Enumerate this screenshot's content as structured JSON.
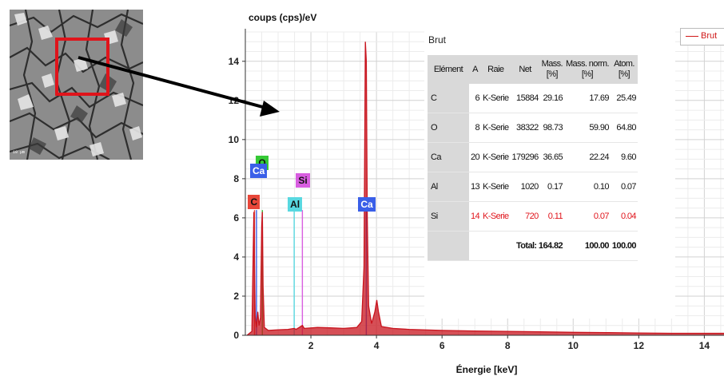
{
  "chart_data": {
    "type": "line",
    "ylabel": "coups (cps)/eV",
    "xlabel": "Énergie [keV]",
    "xlim": [
      0,
      14.6
    ],
    "ylim": [
      0,
      15.5
    ],
    "x_ticks": [
      2,
      4,
      6,
      8,
      10,
      12,
      14
    ],
    "x_tick_labels": [
      "2",
      "4",
      "6",
      "8",
      "10",
      "12",
      "14"
    ],
    "y_ticks": [
      0,
      2,
      4,
      6,
      8,
      10,
      12,
      14
    ],
    "y_tick_labels": [
      "0",
      "2",
      "4",
      "6",
      "8",
      "10",
      "12",
      "14"
    ],
    "grid": true,
    "legend_position": "top-right",
    "series": [
      {
        "name": "Brut",
        "color": "#c8141e",
        "x": [
          0.05,
          0.2,
          0.26,
          0.28,
          0.3,
          0.34,
          0.38,
          0.42,
          0.46,
          0.5,
          0.52,
          0.54,
          0.58,
          0.7,
          1.0,
          1.3,
          1.49,
          1.55,
          1.74,
          1.8,
          2.2,
          2.6,
          3.0,
          3.4,
          3.55,
          3.62,
          3.66,
          3.69,
          3.72,
          3.76,
          3.85,
          3.95,
          4.01,
          4.06,
          4.15,
          4.5,
          5.0,
          6.0,
          7.0,
          8.0,
          9.0,
          10.0,
          11.0,
          12.0,
          13.0,
          14.0,
          14.6
        ],
        "y": [
          0.0,
          0.2,
          6.3,
          3.5,
          1.0,
          0.4,
          1.2,
          0.5,
          0.9,
          5.6,
          6.3,
          2.5,
          0.4,
          0.25,
          0.28,
          0.3,
          0.35,
          0.3,
          0.5,
          0.35,
          0.4,
          0.38,
          0.35,
          0.4,
          0.7,
          3.5,
          15.0,
          14.0,
          6.0,
          1.5,
          0.6,
          1.2,
          1.8,
          1.2,
          0.45,
          0.35,
          0.3,
          0.25,
          0.22,
          0.2,
          0.18,
          0.15,
          0.14,
          0.12,
          0.1,
          0.1,
          0.1
        ]
      }
    ],
    "element_lines": [
      {
        "label": "C",
        "energy": 0.28,
        "color": "#e8473a"
      },
      {
        "label": "O",
        "energy": 0.52,
        "color": "#35c935"
      },
      {
        "label": "Ca",
        "energy": 0.34,
        "color": "#3a5fe8"
      },
      {
        "label": "Al",
        "energy": 1.49,
        "color": "#58d8e0"
      },
      {
        "label": "Si",
        "energy": 1.74,
        "color": "#d85ee0"
      },
      {
        "label": "Ca",
        "energy": 3.69,
        "color": "#3a5fe8"
      }
    ]
  },
  "legend": {
    "label": "Brut",
    "color": "#d01818"
  },
  "table": {
    "title": "Brut",
    "headers": {
      "element": "Elément",
      "a": "A",
      "raie": "Raie",
      "net": "Net",
      "mass_line1": "Mass.",
      "mass_line2": "[%]",
      "massnorm_line1": "Mass. norm.",
      "massnorm_line2": "[%]",
      "atom_line1": "Atom.",
      "atom_line2": "[%]"
    },
    "rows": [
      {
        "element": "C",
        "a": "6",
        "raie": "K-Serie",
        "net": "15884",
        "mass": "29.16",
        "mass_norm": "17.69",
        "atom": "25.49"
      },
      {
        "element": "O",
        "a": "8",
        "raie": "K-Serie",
        "net": "38322",
        "mass": "98.73",
        "mass_norm": "59.90",
        "atom": "64.80"
      },
      {
        "element": "Ca",
        "a": "20",
        "raie": "K-Serie",
        "net": "179296",
        "mass": "36.65",
        "mass_norm": "22.24",
        "atom": "9.60"
      },
      {
        "element": "Al",
        "a": "13",
        "raie": "K-Serie",
        "net": "1020",
        "mass": "0.17",
        "mass_norm": "0.10",
        "atom": "0.07"
      },
      {
        "element": "Si",
        "a": "14",
        "raie": "K-Serie",
        "net": "720",
        "mass": "0.11",
        "mass_norm": "0.07",
        "atom": "0.04"
      }
    ],
    "total_label": "Total: 164.82",
    "total_mass_norm": "100.00",
    "total_atom": "100.00"
  },
  "sem_image": {
    "scale_text": "10 µm"
  }
}
